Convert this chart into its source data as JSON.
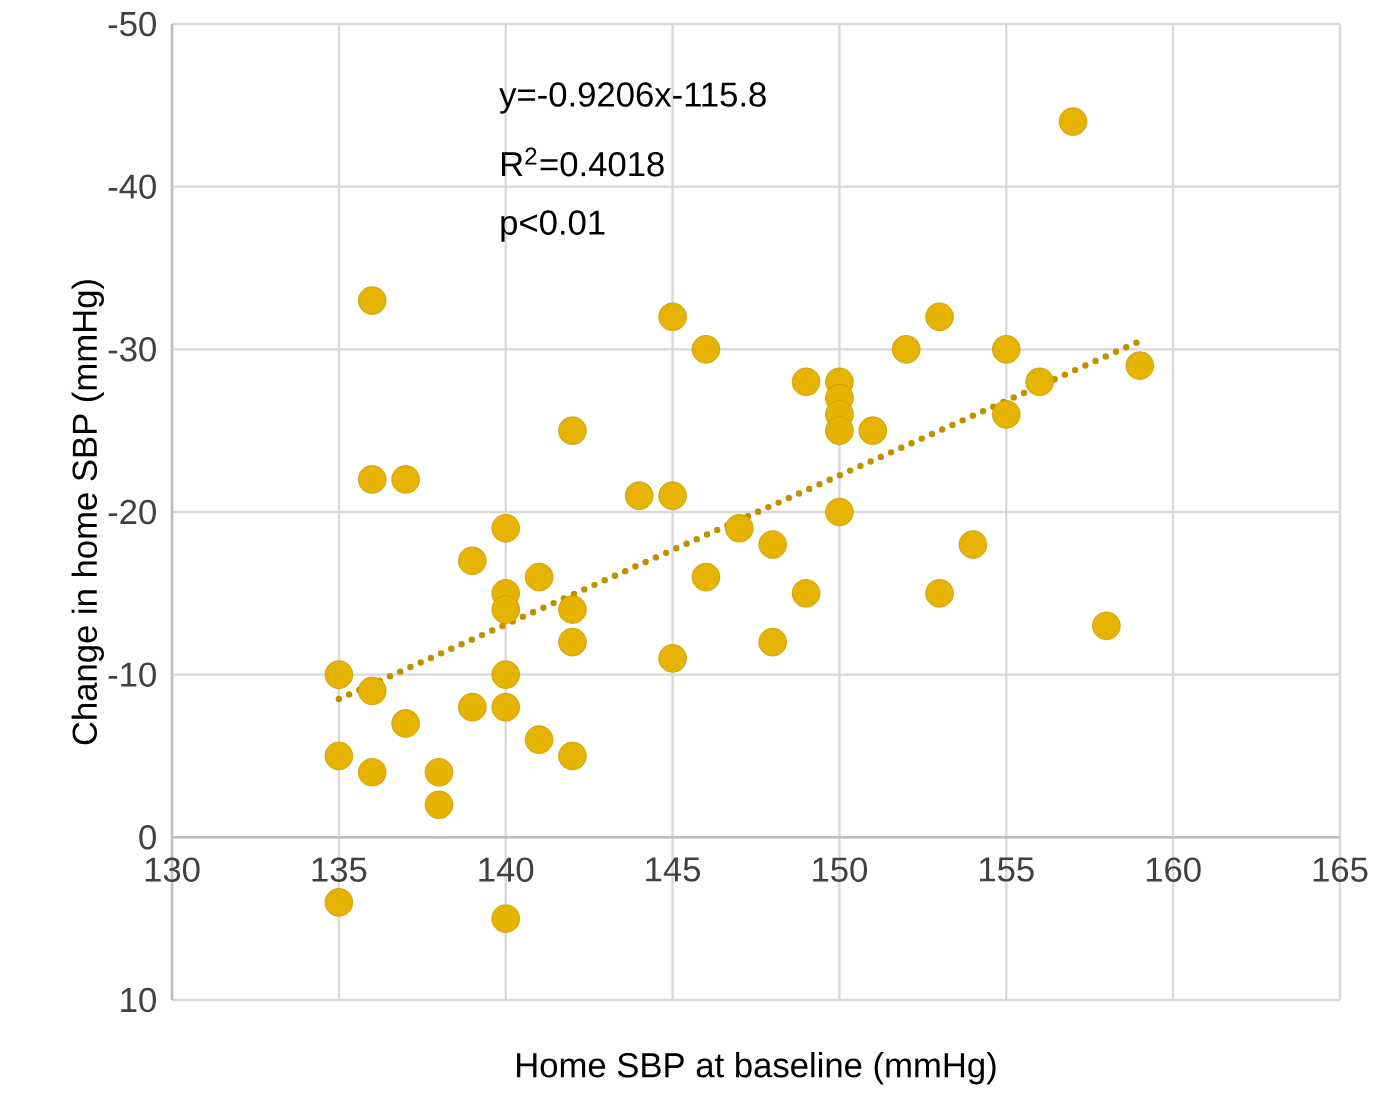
{
  "chart_data": {
    "type": "scatter",
    "xlabel": "Home SBP at baseline (mmHg)",
    "ylabel": "Change in home SBP (mmHg)",
    "annotations": [
      "y=-0.9206x-115.8",
      "R$^{2}$=0.4018",
      "p<0.01"
    ],
    "xlim": [
      130,
      165
    ],
    "xticks": [
      130,
      135,
      140,
      145,
      150,
      155,
      160,
      165
    ],
    "ylim": [
      10,
      -50
    ],
    "yticks": [
      -50,
      -40,
      -30,
      -20,
      -10,
      0,
      10
    ],
    "grid": true,
    "series": [
      {
        "color": "#e6b400",
        "marker": "circle",
        "x": [
          135,
          135,
          135,
          136,
          136,
          136,
          136,
          137,
          137,
          138,
          138,
          139,
          139,
          140,
          140,
          140,
          140,
          140,
          140,
          141,
          141,
          142,
          142,
          142,
          142,
          144,
          145,
          145,
          145,
          146,
          146,
          147,
          148,
          148,
          149,
          149,
          150,
          150,
          150,
          150,
          150,
          151,
          152,
          153,
          153,
          154,
          155,
          155,
          156,
          157,
          158,
          159
        ],
        "values": [
          -10,
          -5,
          4,
          -33,
          -22,
          -9,
          -4,
          -22,
          -7,
          -4,
          -2,
          -17,
          -8,
          -19,
          -15,
          -14,
          -10,
          -8,
          5,
          -16,
          -6,
          -25,
          -14,
          -12,
          -5,
          -21,
          -32,
          -21,
          -11,
          -30,
          -16,
          -19,
          -18,
          -12,
          -28,
          -15,
          -28,
          -27,
          -26,
          -25,
          -20,
          -25,
          -30,
          -32,
          -15,
          -18,
          -30,
          -26,
          -28,
          -44,
          -13,
          -29
        ]
      },
      {
        "type": "line",
        "color": "#bf9000",
        "line_style": "dotted",
        "marker": "none",
        "x": [
          135,
          159
        ],
        "values": [
          -8.5,
          -30.5
        ]
      }
    ]
  }
}
